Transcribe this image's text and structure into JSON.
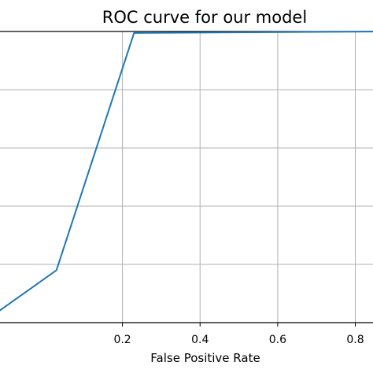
{
  "chart_data": {
    "type": "line",
    "title": "ROC curve for our model",
    "xlabel": "False Positive Rate",
    "ylabel": "",
    "xlim": [
      -0.16,
      0.88
    ],
    "ylim": [
      0,
      1
    ],
    "xticks": [
      0.2,
      0.4,
      0.6,
      0.8
    ],
    "xtick_labels": [
      "0.2",
      "0.4",
      "0.6",
      "0.8"
    ],
    "yticks": [
      0.2,
      0.4,
      0.6,
      0.8,
      1.0
    ],
    "grid": true,
    "series": [
      {
        "color": "#1f77b4",
        "x": [
          -0.16,
          0.03,
          0.23,
          0.88
        ],
        "y": [
          0.0,
          0.18,
          0.995,
          1.0
        ]
      }
    ]
  }
}
